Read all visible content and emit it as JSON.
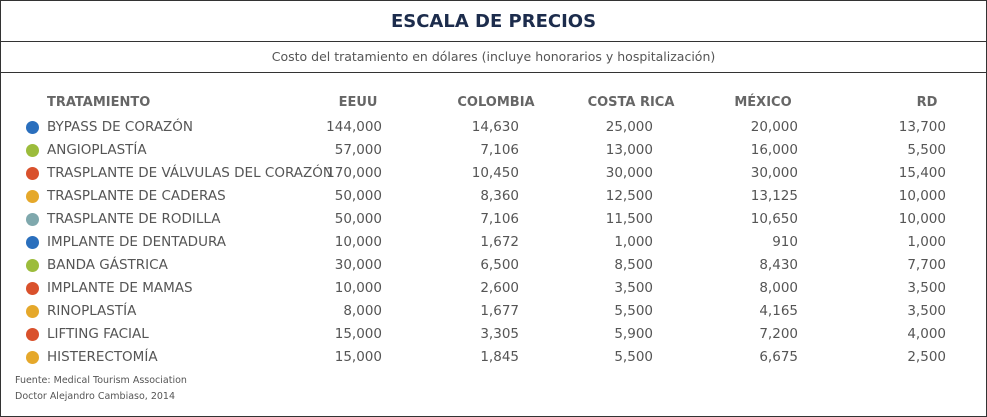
{
  "header": {
    "title": "ESCALA DE PRECIOS",
    "subtitle": "Costo del tratamiento en dólares (incluye honorarios y hospitalización)"
  },
  "table": {
    "columns": [
      "TRATAMIENTO",
      "EEUU",
      "COLOMBIA",
      "COSTA RICA",
      "MÉXICO",
      "RD"
    ],
    "rows": [
      [
        "BYPASS DE CORAZÓN",
        "144,000",
        "14,630",
        "25,000",
        "20,000",
        "13,700"
      ],
      [
        "ANGIOPLASTÍA",
        "57,000",
        "7,106",
        "13,000",
        "16,000",
        "5,500"
      ],
      [
        "TRASPLANTE DE VÁLVULAS DEL CORAZÓN",
        "170,000",
        "10,450",
        "30,000",
        "30,000",
        "15,400"
      ],
      [
        "TRASPLANTE DE CADERAS",
        "50,000",
        "8,360",
        "12,500",
        "13,125",
        "10,000"
      ],
      [
        "TRASPLANTE DE RODILLA",
        "50,000",
        "7,106",
        "11,500",
        "10,650",
        "10,000"
      ],
      [
        "IMPLANTE DE DENTADURA",
        "10,000",
        "1,672",
        "1,000",
        "910",
        "1,000"
      ],
      [
        "BANDA GÁSTRICA",
        "30,000",
        "6,500",
        "8,500",
        "8,430",
        "7,700"
      ],
      [
        "IMPLANTE DE MAMAS",
        "10,000",
        "2,600",
        "3,500",
        "8,000",
        "3,500"
      ],
      [
        "RINOPLASTÍA",
        "8,000",
        "1,677",
        "5,500",
        "4,165",
        "3,500"
      ],
      [
        "LIFTING FACIAL",
        "15,000",
        "3,305",
        "5,900",
        "7,200",
        "4,000"
      ],
      [
        "HISTERECTOMÍA",
        "15,000",
        "1,845",
        "5,500",
        "6,675",
        "2,500"
      ]
    ],
    "dot_colors": [
      "#2a6fbd",
      "#9cbc3c",
      "#d9512c",
      "#e5a82b",
      "#7fa8ad",
      "#2a6fbd",
      "#9cbc3c",
      "#d9512c",
      "#e5a82b",
      "#d9512c",
      "#e5a82b"
    ]
  },
  "footer": {
    "source": "Fuente: Medical Tourism Association",
    "credit": "Doctor Alejandro Cambiaso, 2014"
  }
}
